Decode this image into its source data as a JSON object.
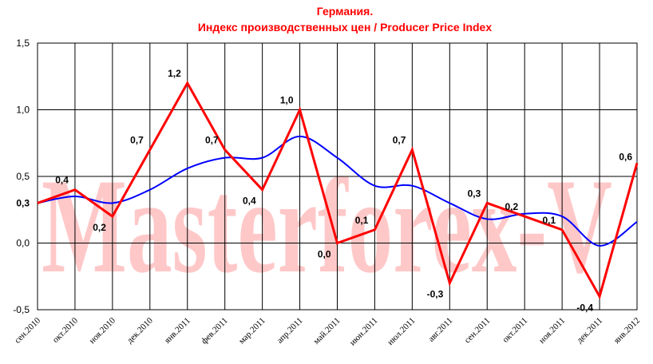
{
  "watermark": "Masterforex-V",
  "chart_data": {
    "type": "line",
    "title_line1": "Германия.",
    "title_line2": "Индекс производственных цен / Producer Price Index",
    "categories": [
      "сен.2010",
      "окт.2010",
      "ноя.2010",
      "дек.2010",
      "янв.2011",
      "фев.2011",
      "мар.2011",
      "апр.2011",
      "май.2011",
      "июн.2011",
      "июл.2011",
      "авг.2011",
      "сен.2011",
      "окт.2011",
      "ноя.2011",
      "дек.2011",
      "янв.2012"
    ],
    "y_ticks": [
      "1,5",
      "1,0",
      "0,5",
      "0,0",
      "-0,5"
    ],
    "y_tick_values": [
      1.5,
      1.0,
      0.5,
      0.0,
      -0.5
    ],
    "ylim": [
      -0.5,
      1.5
    ],
    "grid": {
      "vertical": true,
      "horizontal": true
    },
    "series": [
      {
        "color": "#ff0000",
        "values": [
          0.3,
          0.4,
          0.2,
          0.7,
          1.2,
          0.7,
          0.4,
          1.0,
          0.0,
          0.1,
          0.7,
          -0.3,
          0.3,
          0.2,
          0.1,
          -0.4,
          0.6
        ],
        "labels": [
          "0,3",
          "0,4",
          "0,2",
          "0,7",
          "1,2",
          "0,7",
          "0,4",
          "1,0",
          "0,0",
          "0,1",
          "0,7",
          "-0,3",
          "0,3",
          "0,2",
          "0,1",
          "-0,4",
          "0,6"
        ]
      },
      {
        "color": "#0000ff",
        "smooth": true,
        "values": [
          0.3,
          0.35,
          0.3,
          0.4,
          0.56,
          0.64,
          0.64,
          0.8,
          0.64,
          0.43,
          0.43,
          0.3,
          0.18,
          0.22,
          0.2,
          -0.02,
          0.16
        ]
      }
    ]
  }
}
